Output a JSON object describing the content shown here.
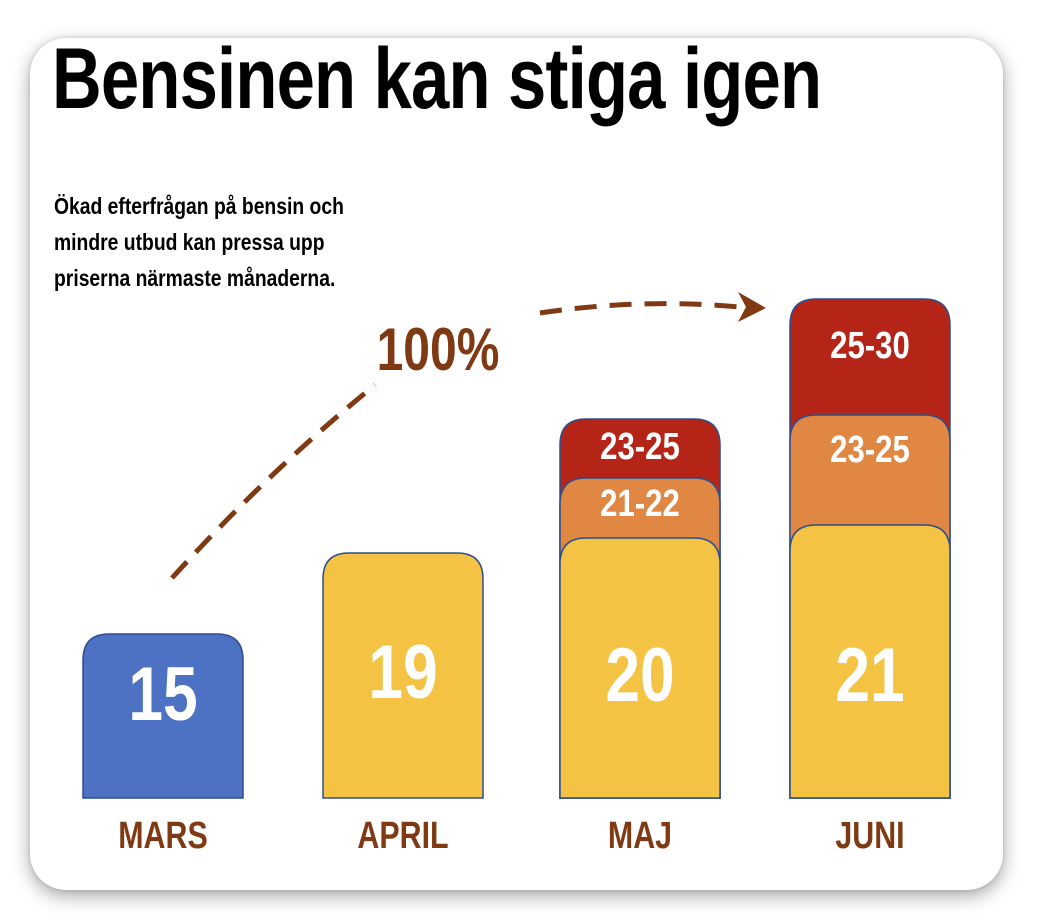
{
  "colors": {
    "actual": "#4D72C3",
    "base": "#F4C343",
    "mid": "#E08743",
    "high": "#B42518",
    "label": "#7F3A14",
    "arrow": "#7F3A14",
    "bar_text": "#FFFFFF"
  },
  "chart_data": {
    "type": "bar",
    "title": "Bensinen kan stiga igen",
    "subtitle": "Ökad efterfrågan på bensin och mindre utbud kan pressa upp priserna närmaste månaderna.",
    "categories": [
      "MARS",
      "APRIL",
      "MAJ",
      "JUNI"
    ],
    "stacks": [
      [
        {
          "label": "15",
          "tier": "actual"
        }
      ],
      [
        {
          "label": "19",
          "tier": "base"
        }
      ],
      [
        {
          "label": "20",
          "tier": "base"
        },
        {
          "label": "21-22",
          "tier": "mid"
        },
        {
          "label": "23-25",
          "tier": "high"
        }
      ],
      [
        {
          "label": "21",
          "tier": "base"
        },
        {
          "label": "23-25",
          "tier": "mid"
        },
        {
          "label": "25-30",
          "tier": "high"
        }
      ]
    ],
    "annotation": "100%",
    "grid": false,
    "legend": "none"
  }
}
